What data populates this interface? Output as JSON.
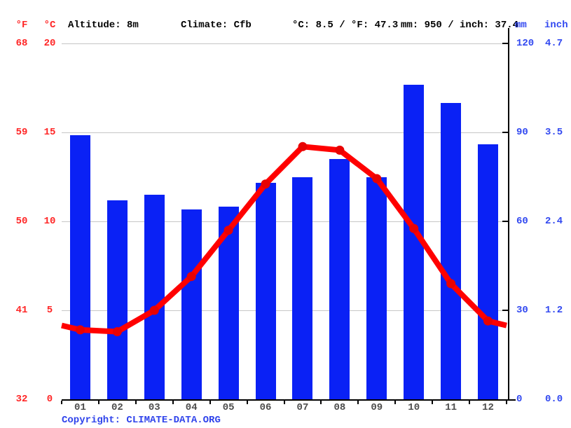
{
  "header": {
    "f_label": "°F",
    "c_label": "°C",
    "altitude": "Altitude: 8m",
    "climate": "Climate: Cfb",
    "temp_summary": "°C: 8.5 / °F: 47.3",
    "precip_summary": "mm: 950 / inch: 37.4",
    "mm_label": "mm",
    "inch_label": "inch"
  },
  "footer": {
    "copyright_label": "Copyright: ",
    "copyright_link": "CLIMATE-DATA.ORG"
  },
  "colors": {
    "bar_blue": "#0a21f5",
    "line_red": "#ff0000",
    "point_red": "#e80202",
    "red_text": "#ff2626",
    "blue_text": "#3148f0",
    "grid_gray": "#c6c6c6",
    "month_text": "#4d4d4d",
    "axis_black": "#000000"
  },
  "chart_data": {
    "type": "bar",
    "title": "Climate graph: monthly precipitation (bars) and temperature (line)",
    "categories": [
      "01",
      "02",
      "03",
      "04",
      "05",
      "06",
      "07",
      "08",
      "09",
      "10",
      "11",
      "12"
    ],
    "series": [
      {
        "name": "precipitation_mm",
        "type": "bar",
        "axis": "right",
        "values": [
          89,
          67,
          69,
          64,
          65,
          73,
          75,
          81,
          75,
          106,
          100,
          86
        ]
      },
      {
        "name": "temperature_c",
        "type": "line",
        "axis": "left",
        "values": [
          3.9,
          3.8,
          5.0,
          6.9,
          9.5,
          12.1,
          14.2,
          14.0,
          12.4,
          9.6,
          6.5,
          4.4
        ]
      }
    ],
    "left_axis": {
      "units": [
        "°F",
        "°C"
      ],
      "ticks_f": [
        "68",
        "59",
        "50",
        "41",
        "32"
      ],
      "ticks_c": [
        "20",
        "15",
        "10",
        "5",
        "0"
      ],
      "range_c": [
        0,
        20
      ]
    },
    "right_axis": {
      "units": [
        "mm",
        "inch"
      ],
      "ticks_mm": [
        "120",
        "90",
        "60",
        "30",
        "0"
      ],
      "ticks_inch": [
        "4.7",
        "3.5",
        "2.4",
        "1.2",
        "0.0"
      ],
      "range_mm": [
        0,
        120
      ]
    },
    "grid": true,
    "legend_position": "none"
  }
}
